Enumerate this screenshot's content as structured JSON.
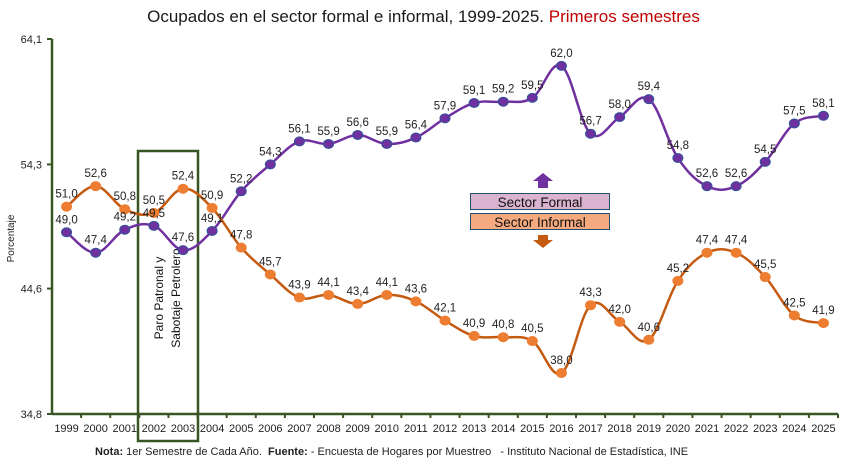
{
  "title": {
    "main": "Ocupados en el sector formal e informal, 1999-2025.",
    "accent": "Primeros semestres"
  },
  "footer": {
    "nota_label": "Nota:",
    "nota_text": " 1er Semestre de Cada Año.  ",
    "fuente_label": "Fuente:",
    "fuente_text": " - Encuesta de Hogares por Muestreo   - Instituto Nacional de Estadística, INE"
  },
  "legend": {
    "formal": "Sector Formal",
    "informal": "Sector Informal"
  },
  "annotation": {
    "line1": "Paro Patronal y",
    "line2": "Sabotaje Petrolero"
  },
  "colors": {
    "formal_line": "#7030a0",
    "formal_marker": "#7030a0",
    "formal_marker_border": "#2e5597",
    "informal_line": "#c55a11",
    "informal_marker": "#ed7d31",
    "axis": "#375623",
    "box": "#375623",
    "title_accent": "#c00000"
  },
  "chart_data": {
    "type": "line",
    "title": "Ocupados en el sector formal e informal, 1999-2025. Primeros semestres",
    "xlabel": "",
    "ylabel": "Porcentaje",
    "ylim": [
      34.8,
      64.1
    ],
    "yticks": [
      "34,8",
      "44,6",
      "54,3",
      "64,1"
    ],
    "ytick_values": [
      34.8,
      44.6,
      54.3,
      64.1
    ],
    "grid": false,
    "legend_position": "center",
    "categories": [
      "1999",
      "2000",
      "2001",
      "2002",
      "2003",
      "2004",
      "2005",
      "2006",
      "2007",
      "2008",
      "2009",
      "2010",
      "2011",
      "2012",
      "2013",
      "2014",
      "2015",
      "2016",
      "2017",
      "2018",
      "2019",
      "2020",
      "2021",
      "2022",
      "2023",
      "2024",
      "2025"
    ],
    "series": [
      {
        "name": "Sector Formal",
        "values": [
          49.0,
          47.4,
          49.2,
          49.5,
          47.6,
          49.1,
          52.2,
          54.3,
          56.1,
          55.9,
          56.6,
          55.9,
          56.4,
          57.9,
          59.1,
          59.2,
          59.5,
          62.0,
          56.7,
          58.0,
          59.4,
          54.8,
          52.6,
          52.6,
          54.5,
          57.5,
          58.1
        ],
        "labels": [
          "49,0",
          "47,4",
          "49,2",
          "49,5",
          "47,6",
          "49,1",
          "52,2",
          "54,3",
          "56,1",
          "55,9",
          "56,6",
          "55,9",
          "56,4",
          "57,9",
          "59,1",
          "59,2",
          "59,5",
          "62,0",
          "56,7",
          "58,0",
          "59,4",
          "54,8",
          "52,6",
          "52,6",
          "54,5",
          "57,5",
          "58,1"
        ]
      },
      {
        "name": "Sector Informal",
        "values": [
          51.0,
          52.6,
          50.8,
          50.5,
          52.4,
          50.9,
          47.8,
          45.7,
          43.9,
          44.1,
          43.4,
          44.1,
          43.6,
          42.1,
          40.9,
          40.8,
          40.5,
          38.0,
          43.3,
          42.0,
          40.6,
          45.2,
          47.4,
          47.4,
          45.5,
          42.5,
          41.9
        ],
        "labels": [
          "51,0",
          "52,6",
          "50,8",
          "50,5",
          "52,4",
          "50,9",
          "47,8",
          "45,7",
          "43,9",
          "44,1",
          "43,4",
          "44,1",
          "43,6",
          "42,1",
          "40,9",
          "40,8",
          "40,5",
          "38,0",
          "43,3",
          "42,0",
          "40,6",
          "45,2",
          "47,4",
          "47,4",
          "45,5",
          "42,5",
          "41,9"
        ]
      }
    ],
    "annotations": [
      {
        "text": "Paro Patronal y Sabotaje Petrolero",
        "x_range": [
          "2002",
          "2003"
        ]
      }
    ]
  }
}
